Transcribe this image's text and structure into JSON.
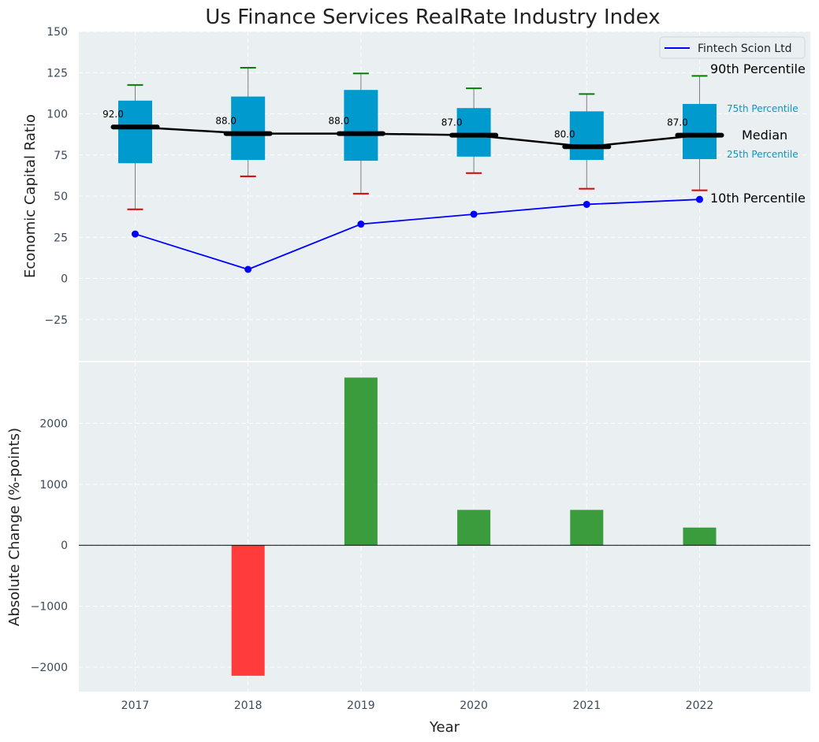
{
  "chart_data": {
    "title": "Us Finance Services RealRate Industry Index",
    "xlabel": "Year",
    "categories": [
      "2017",
      "2018",
      "2019",
      "2020",
      "2021",
      "2022"
    ],
    "colors": {
      "panel_bg": "#eaeff1",
      "box_fill": "#009ace",
      "whisker_high": "#008000",
      "whisker_low": "#dd0000",
      "median_line": "#000000",
      "company_line": "#0000ff",
      "bar_positive": "#3b9c3d",
      "bar_negative": "#ff3b3b",
      "annot_percentile": "#009ace"
    },
    "top_panel": {
      "type": "box_and_line",
      "ylabel": "Economic Capital Ratio",
      "ylim": [
        -50,
        150
      ],
      "yticks": [
        "150",
        "125",
        "100",
        "75",
        "50",
        "25",
        "0",
        "−25"
      ],
      "ytick_values": [
        150,
        125,
        100,
        75,
        50,
        25,
        0,
        -25
      ],
      "p10": [
        42,
        62,
        51.5,
        64,
        54.5,
        53.5
      ],
      "p25": [
        70,
        72,
        71.5,
        74,
        72,
        72.5
      ],
      "median": [
        92,
        88,
        88,
        87,
        80,
        87
      ],
      "p75": [
        108,
        110.5,
        114.5,
        103.5,
        101.5,
        106
      ],
      "p90": [
        117.5,
        128,
        124.5,
        115.5,
        112,
        123
      ],
      "median_labels": [
        "92.0",
        "88.0",
        "88.0",
        "87.0",
        "80.0",
        "87.0"
      ],
      "company_series": {
        "name": "Fintech Scion Ltd",
        "values": [
          27,
          5.5,
          33,
          39,
          45,
          48
        ]
      },
      "legend": {
        "label": "Fintech Scion Ltd",
        "position": "top-right"
      },
      "annotations": {
        "p90": "90th Percentile",
        "p75": "75th Percentile",
        "median": "Median",
        "p25": "25th Percentile",
        "p10": "10th Percentile"
      }
    },
    "bottom_panel": {
      "type": "bar",
      "ylabel": "Absolute Change (%-points)",
      "ylim": [
        -2400,
        3000
      ],
      "yticks": [
        "2000",
        "1000",
        "0",
        "−1000",
        "−2000"
      ],
      "ytick_values": [
        2000,
        1000,
        0,
        -1000,
        -2000
      ],
      "values": [
        0,
        -2140,
        2750,
        580,
        580,
        290
      ]
    }
  }
}
